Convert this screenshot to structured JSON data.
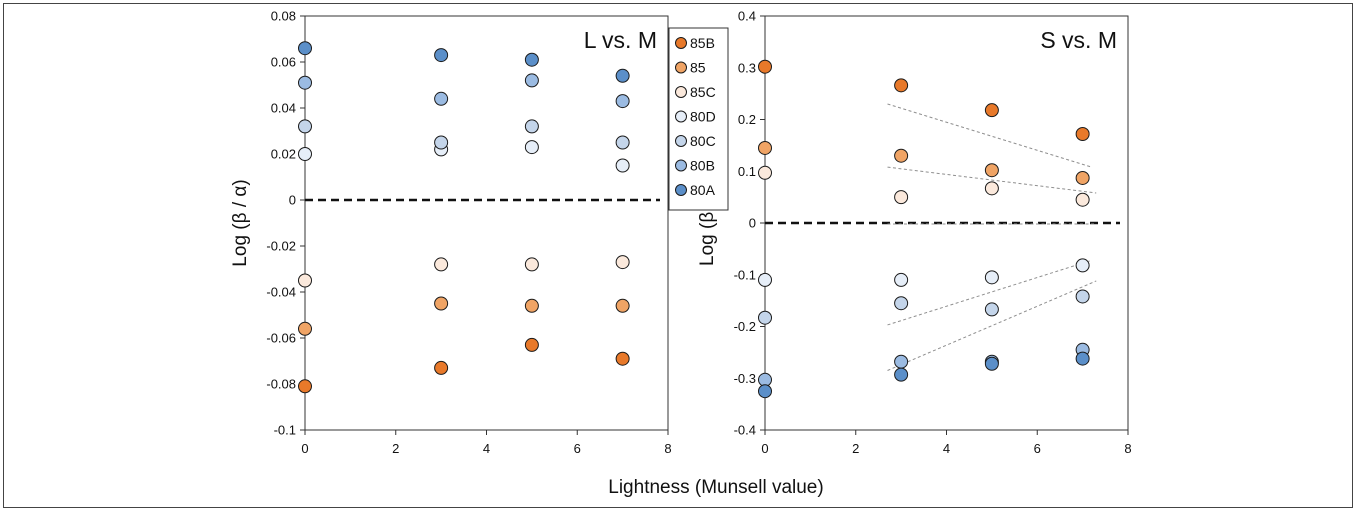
{
  "shared_xlabel": "Lightness (Munsell value)",
  "legend": {
    "entries": [
      {
        "label": "85B",
        "color": "#e8792a"
      },
      {
        "label": "85",
        "color": "#f0a465"
      },
      {
        "label": "85C",
        "color": "#fbe9dc"
      },
      {
        "label": "80D",
        "color": "#e6eef8"
      },
      {
        "label": "80C",
        "color": "#c4d5ea"
      },
      {
        "label": "80B",
        "color": "#9bbbe2"
      },
      {
        "label": "80A",
        "color": "#5b8fc9"
      }
    ]
  },
  "chart_data": [
    {
      "type": "scatter",
      "title": "L vs. M",
      "xlabel": "",
      "ylabel": "Log (β / α)",
      "xlim": [
        0,
        8
      ],
      "ylim": [
        -0.1,
        0.08
      ],
      "xticks": [
        "0",
        "2",
        "4",
        "6",
        "8"
      ],
      "yticks": [
        "0.08",
        "0.06",
        "0.04",
        "0.02",
        "0",
        "-0.02",
        "-0.04",
        "-0.06",
        "-0.08",
        "-0.1"
      ],
      "reference_line_y": 0,
      "x": [
        0,
        3,
        5,
        7
      ],
      "series": [
        {
          "name": "85B",
          "values": [
            -0.081,
            -0.073,
            -0.063,
            -0.069
          ]
        },
        {
          "name": "85",
          "values": [
            -0.056,
            -0.045,
            -0.046,
            -0.046
          ]
        },
        {
          "name": "85C",
          "values": [
            -0.035,
            -0.028,
            -0.028,
            -0.027
          ]
        },
        {
          "name": "80D",
          "values": [
            0.02,
            0.022,
            0.023,
            0.015
          ]
        },
        {
          "name": "80C",
          "values": [
            0.032,
            0.025,
            0.032,
            0.025
          ]
        },
        {
          "name": "80B",
          "values": [
            0.051,
            0.044,
            0.052,
            0.043
          ]
        },
        {
          "name": "80A",
          "values": [
            0.066,
            0.063,
            0.061,
            0.054
          ]
        }
      ],
      "trend_lines": []
    },
    {
      "type": "scatter",
      "title": "S vs. M",
      "xlabel": "",
      "ylabel": "Log (β / γ)",
      "xlim": [
        0,
        8
      ],
      "ylim": [
        -0.4,
        0.4
      ],
      "xticks": [
        "0",
        "2",
        "4",
        "6",
        "8"
      ],
      "yticks": [
        "0.4",
        "0.3",
        "0.2",
        "0.1",
        "0",
        "-0.1",
        "-0.2",
        "-0.3",
        "-0.4"
      ],
      "reference_line_y": 0,
      "x": [
        0,
        3,
        5,
        7
      ],
      "series": [
        {
          "name": "85B",
          "values": [
            0.302,
            0.266,
            0.218,
            0.172
          ]
        },
        {
          "name": "85",
          "values": [
            0.145,
            0.13,
            0.102,
            0.087
          ]
        },
        {
          "name": "85C",
          "values": [
            0.097,
            0.05,
            0.067,
            0.045
          ]
        },
        {
          "name": "80D",
          "values": [
            -0.11,
            -0.11,
            -0.105,
            -0.082
          ]
        },
        {
          "name": "80C",
          "values": [
            -0.183,
            -0.155,
            -0.167,
            -0.142
          ]
        },
        {
          "name": "80B",
          "values": [
            -0.303,
            -0.268,
            -0.268,
            -0.245
          ]
        },
        {
          "name": "80A",
          "values": [
            -0.325,
            -0.293,
            -0.272,
            -0.262
          ]
        }
      ],
      "trend_lines": [
        {
          "x": [
            2.7,
            7.2
          ],
          "y": [
            0.23,
            0.108
          ]
        },
        {
          "x": [
            2.7,
            7.3
          ],
          "y": [
            0.108,
            0.058
          ]
        },
        {
          "x": [
            2.7,
            7.3
          ],
          "y": [
            -0.002,
            -0.002
          ]
        },
        {
          "x": [
            2.7,
            7.2
          ],
          "y": [
            -0.197,
            -0.072
          ]
        },
        {
          "x": [
            2.7,
            7.3
          ],
          "y": [
            -0.285,
            -0.112
          ]
        }
      ]
    }
  ]
}
